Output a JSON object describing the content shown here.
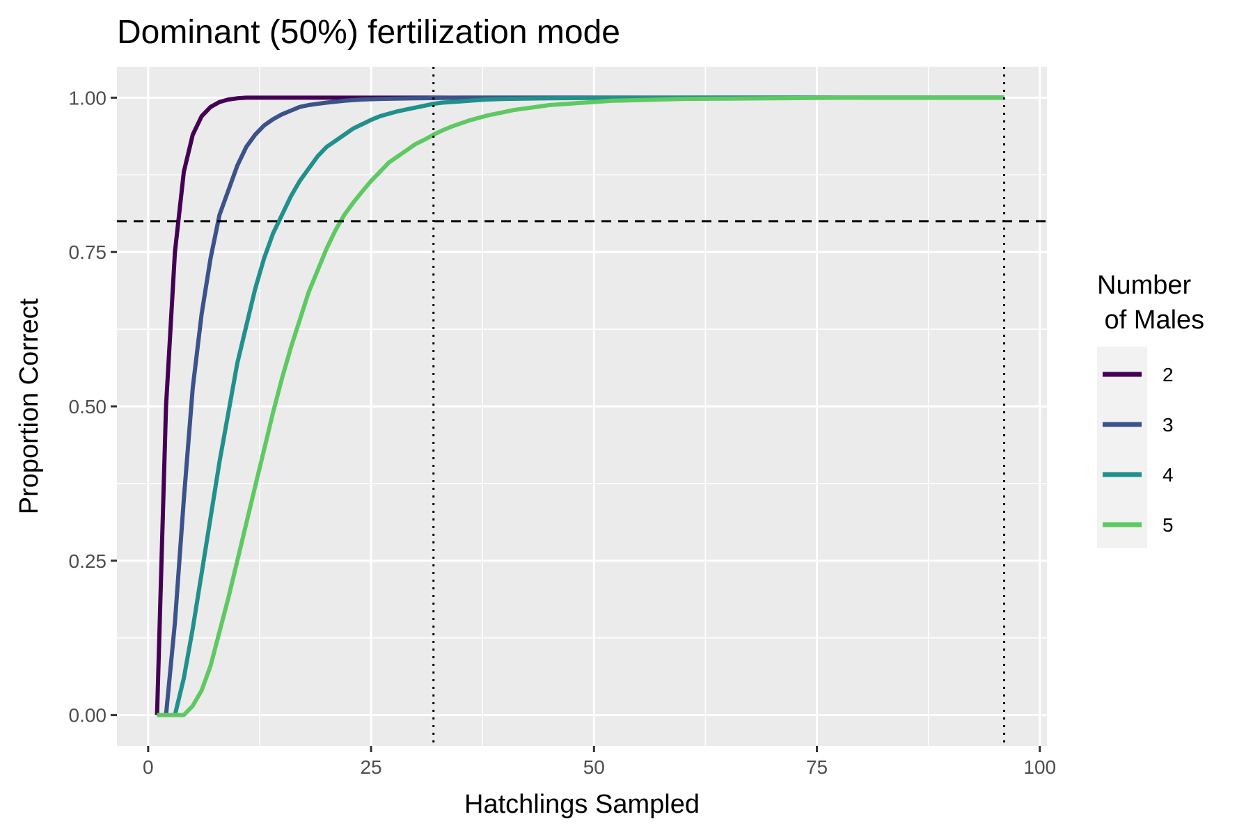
{
  "chart_data": {
    "type": "line",
    "title": "Dominant (50%) fertilization mode",
    "xlabel": "Hatchlings Sampled",
    "ylabel": "Proportion Correct",
    "xlim": [
      -3.5,
      100.8
    ],
    "ylim": [
      -0.05,
      1.05
    ],
    "x_ticks": [
      0,
      25,
      50,
      75,
      100
    ],
    "x_tick_labels": [
      "0",
      "25",
      "50",
      "75",
      "100"
    ],
    "y_ticks": [
      0,
      0.25,
      0.5,
      0.75,
      1
    ],
    "y_tick_labels": [
      "0.00",
      "0.25",
      "0.50",
      "0.75",
      "1.00"
    ],
    "grid": true,
    "background": "#ebebeb",
    "legend": {
      "title_lines": [
        "Number",
        " of Males"
      ],
      "position": "right"
    },
    "reference_lines": [
      {
        "orientation": "horizontal",
        "value": 0.8,
        "style": "dashed"
      },
      {
        "orientation": "vertical",
        "value": 32,
        "style": "dotted"
      },
      {
        "orientation": "vertical",
        "value": 96,
        "style": "dotted"
      }
    ],
    "series": [
      {
        "name": "2",
        "color": "#440154",
        "x": [
          1,
          2,
          3,
          4,
          5,
          6,
          7,
          8,
          9,
          10,
          11,
          12,
          15,
          20,
          25,
          96
        ],
        "y": [
          0,
          0.5,
          0.75,
          0.88,
          0.94,
          0.97,
          0.985,
          0.993,
          0.997,
          0.999,
          1,
          1,
          1,
          1,
          1,
          1
        ]
      },
      {
        "name": "3",
        "color": "#3b528b",
        "x": [
          2,
          3,
          4,
          5,
          6,
          7,
          8,
          9,
          10,
          11,
          12,
          13,
          14,
          15,
          16,
          17,
          18,
          19,
          20,
          22,
          24,
          26,
          30,
          35,
          96
        ],
        "y": [
          0,
          0.15,
          0.35,
          0.53,
          0.65,
          0.74,
          0.81,
          0.85,
          0.89,
          0.92,
          0.94,
          0.955,
          0.965,
          0.973,
          0.979,
          0.985,
          0.988,
          0.99,
          0.992,
          0.995,
          0.997,
          0.998,
          0.999,
          1,
          1
        ]
      },
      {
        "name": "4",
        "color": "#21908c",
        "x": [
          3,
          4,
          5,
          6,
          7,
          8,
          9,
          10,
          11,
          12,
          13,
          14,
          15,
          16,
          17,
          18,
          19,
          20,
          21,
          22,
          23,
          24,
          25,
          26,
          27,
          28,
          29,
          30,
          31,
          32,
          33,
          34,
          35,
          36,
          37,
          38,
          40,
          45,
          50,
          60,
          96
        ],
        "y": [
          0,
          0.06,
          0.14,
          0.23,
          0.32,
          0.41,
          0.49,
          0.57,
          0.63,
          0.69,
          0.74,
          0.78,
          0.81,
          0.84,
          0.865,
          0.885,
          0.905,
          0.92,
          0.93,
          0.94,
          0.95,
          0.957,
          0.964,
          0.97,
          0.974,
          0.978,
          0.981,
          0.984,
          0.987,
          0.99,
          0.992,
          0.993,
          0.994,
          0.995,
          0.996,
          0.997,
          0.998,
          0.999,
          0.9995,
          1,
          1
        ]
      },
      {
        "name": "5",
        "color": "#5ec962",
        "x": [
          1,
          2,
          3,
          4,
          5,
          6,
          7,
          8,
          9,
          10,
          11,
          12,
          13,
          14,
          15,
          16,
          17,
          18,
          19,
          20,
          21,
          22,
          23,
          24,
          25,
          26,
          27,
          28,
          29,
          30,
          31,
          32,
          33,
          34,
          35,
          36,
          37,
          38,
          39,
          40,
          41,
          42,
          43,
          44,
          45,
          46,
          47,
          48,
          50,
          52,
          55,
          60,
          65,
          70,
          75,
          80,
          85,
          90,
          96
        ],
        "y": [
          0,
          0,
          0,
          0,
          0.015,
          0.04,
          0.08,
          0.135,
          0.19,
          0.25,
          0.31,
          0.37,
          0.43,
          0.49,
          0.545,
          0.595,
          0.64,
          0.685,
          0.72,
          0.755,
          0.785,
          0.81,
          0.83,
          0.848,
          0.865,
          0.88,
          0.895,
          0.905,
          0.915,
          0.925,
          0.932,
          0.94,
          0.947,
          0.953,
          0.958,
          0.963,
          0.967,
          0.971,
          0.974,
          0.977,
          0.98,
          0.982,
          0.984,
          0.986,
          0.988,
          0.989,
          0.99,
          0.991,
          0.993,
          0.995,
          0.996,
          0.998,
          0.9985,
          0.999,
          0.9995,
          1,
          1,
          1,
          1
        ]
      }
    ]
  }
}
